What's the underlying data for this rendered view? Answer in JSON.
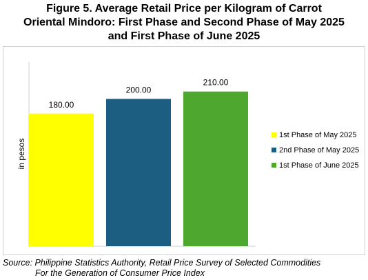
{
  "title_lines": [
    "Figure 5. Average Retail Price per Kilogram of Carrot",
    "Oriental Mindoro: First Phase and Second Phase of May 2025",
    "and First Phase of June 2025"
  ],
  "source_lines": [
    "Source: Philippine Statistics Authority, Retail Price Survey of Selected Commodities",
    "For the Generation of Consumer Price Index"
  ],
  "chart_data": {
    "type": "bar",
    "ylabel": "in pesos",
    "ylim": [
      0,
      250
    ],
    "grid": false,
    "legend_position": "right",
    "series": [
      {
        "name": "1st Phase of May 2025",
        "value": 180,
        "label": "180.00",
        "color": "#ffff00"
      },
      {
        "name": "2nd Phase of May 2025",
        "value": 200,
        "label": "200.00",
        "color": "#1b5e82"
      },
      {
        "name": "1st Phase of June 2025",
        "value": 210,
        "label": "210.00",
        "color": "#4ea72e"
      }
    ]
  }
}
